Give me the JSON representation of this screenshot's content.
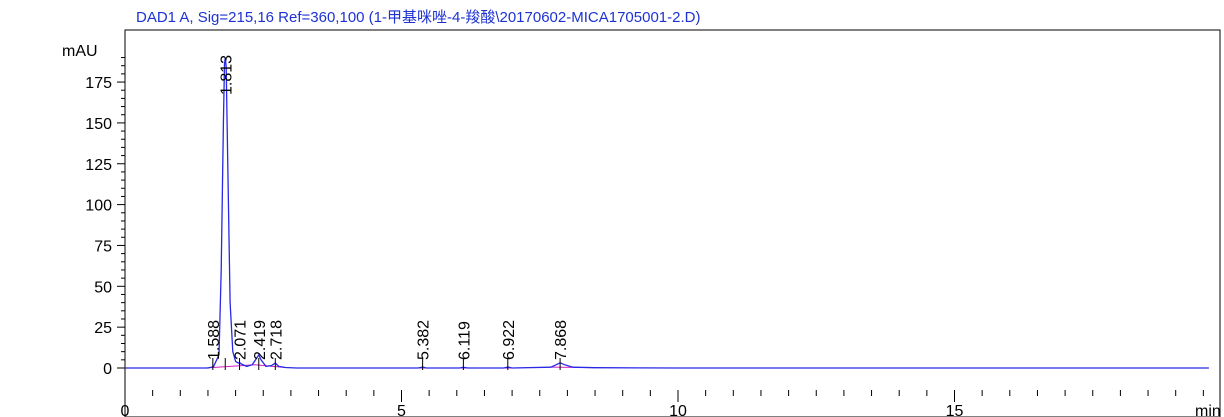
{
  "chart_data": {
    "type": "line",
    "title": "DAD1 A, Sig=215,16 Ref=360,100 (1-甲基咪唑-4-羧酸\\20170602-MICA1705001-2.D)",
    "ylabel": "mAU",
    "xlabel": "min",
    "xlim": [
      0,
      19.6
    ],
    "ylim": [
      -8,
      198
    ],
    "x_ticks": [
      0,
      5,
      10,
      15
    ],
    "y_ticks": [
      0,
      25,
      50,
      75,
      100,
      125,
      150,
      175
    ],
    "grid": false,
    "colors": {
      "trace": "#2828e6",
      "baseline": "#d020c0",
      "frame": "#000000",
      "title": "#1e32d2"
    },
    "series": [
      {
        "x": [
          0,
          1.5,
          1.6,
          1.7,
          1.74,
          1.78,
          1.8,
          1.813,
          1.83,
          1.86,
          1.9,
          1.95,
          2.0,
          2.05,
          2.071,
          2.1,
          2.2,
          2.3,
          2.38,
          2.419,
          2.46,
          2.55,
          2.65,
          2.718,
          2.78,
          2.9,
          3.1,
          5.3,
          5.382,
          5.45,
          6.05,
          6.119,
          6.2,
          6.85,
          6.922,
          7.0,
          7.7,
          7.8,
          7.868,
          7.95,
          8.1,
          8.5,
          10,
          15,
          17,
          19.6
        ],
        "y": [
          0,
          0,
          0.8,
          8,
          60,
          150,
          186,
          190,
          184,
          120,
          40,
          10,
          4,
          3,
          3.5,
          2.5,
          1,
          2,
          6,
          8,
          5,
          1,
          1.5,
          3,
          1,
          0.3,
          0,
          0,
          0.6,
          0,
          0,
          0.4,
          0,
          0,
          0.6,
          0,
          0.5,
          2,
          3.2,
          2,
          0.5,
          0.2,
          0,
          0,
          0,
          0
        ]
      }
    ],
    "peaks": [
      {
        "rt": 1.588,
        "label": "1.588"
      },
      {
        "rt": 1.813,
        "label": "1.813"
      },
      {
        "rt": 2.071,
        "label": "2.071"
      },
      {
        "rt": 2.419,
        "label": "2.419"
      },
      {
        "rt": 2.718,
        "label": "2.718"
      },
      {
        "rt": 5.382,
        "label": "5.382"
      },
      {
        "rt": 6.119,
        "label": "6.119"
      },
      {
        "rt": 6.922,
        "label": "6.922"
      },
      {
        "rt": 7.868,
        "label": "7.868"
      }
    ]
  }
}
